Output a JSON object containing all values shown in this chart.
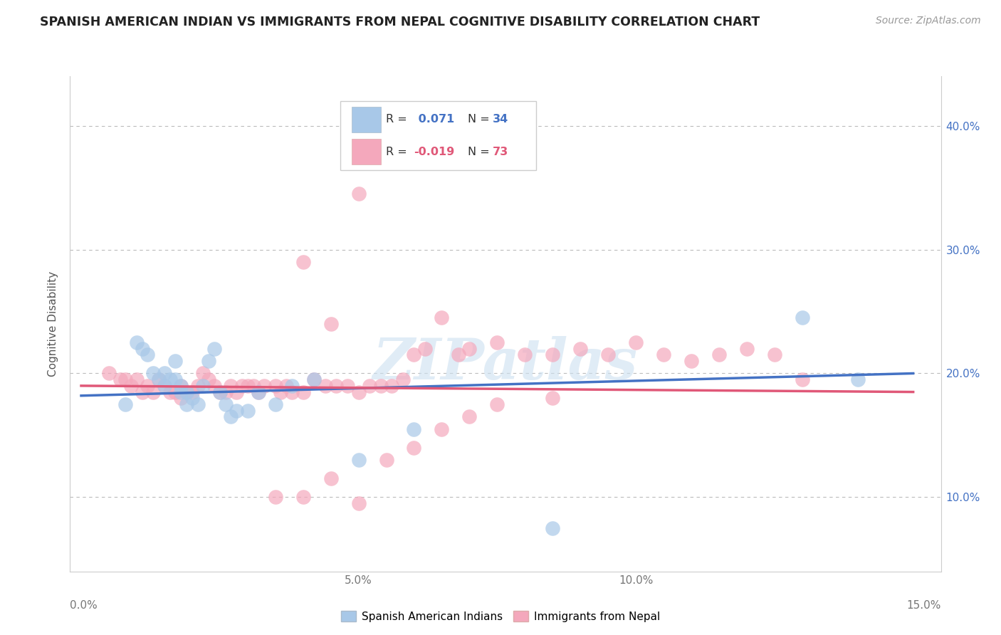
{
  "title": "SPANISH AMERICAN INDIAN VS IMMIGRANTS FROM NEPAL COGNITIVE DISABILITY CORRELATION CHART",
  "source": "Source: ZipAtlas.com",
  "ylabel": "Cognitive Disability",
  "xlim": [
    -0.002,
    0.155
  ],
  "ylim": [
    0.04,
    0.44
  ],
  "xticks": [
    0.0,
    0.05,
    0.1,
    0.15
  ],
  "xticklabels": [
    "0.0%",
    "5.0%",
    "10.0%",
    "15.0%"
  ],
  "yticks": [
    0.1,
    0.2,
    0.3,
    0.4
  ],
  "yticklabels": [
    "10.0%",
    "20.0%",
    "30.0%",
    "40.0%"
  ],
  "watermark": "ZIPatlas",
  "legend_r1": "R =  0.071",
  "legend_n1": "N = 34",
  "legend_r2": "R = -0.019",
  "legend_n2": "N = 73",
  "color_blue": "#a8c8e8",
  "color_pink": "#f4a8bc",
  "color_blue_line": "#4472c4",
  "color_pink_line": "#e05878",
  "color_blue_legend": "#4472c4",
  "color_pink_legend": "#e05878",
  "background_color": "#ffffff",
  "grid_color": "#bbbbbb",
  "blue_x": [
    0.008,
    0.01,
    0.011,
    0.012,
    0.013,
    0.014,
    0.015,
    0.015,
    0.016,
    0.017,
    0.017,
    0.018,
    0.018,
    0.019,
    0.019,
    0.02,
    0.021,
    0.022,
    0.023,
    0.024,
    0.025,
    0.026,
    0.027,
    0.028,
    0.03,
    0.032,
    0.035,
    0.038,
    0.042,
    0.05,
    0.06,
    0.085,
    0.13,
    0.14
  ],
  "blue_y": [
    0.175,
    0.225,
    0.22,
    0.215,
    0.2,
    0.195,
    0.2,
    0.19,
    0.195,
    0.195,
    0.21,
    0.19,
    0.185,
    0.185,
    0.175,
    0.18,
    0.175,
    0.19,
    0.21,
    0.22,
    0.185,
    0.175,
    0.165,
    0.17,
    0.17,
    0.185,
    0.175,
    0.19,
    0.195,
    0.13,
    0.155,
    0.075,
    0.245,
    0.195
  ],
  "pink_x": [
    0.005,
    0.007,
    0.008,
    0.009,
    0.01,
    0.011,
    0.012,
    0.013,
    0.014,
    0.015,
    0.016,
    0.017,
    0.018,
    0.018,
    0.019,
    0.02,
    0.021,
    0.022,
    0.023,
    0.024,
    0.025,
    0.026,
    0.027,
    0.028,
    0.029,
    0.03,
    0.031,
    0.032,
    0.033,
    0.035,
    0.036,
    0.037,
    0.038,
    0.04,
    0.042,
    0.044,
    0.046,
    0.048,
    0.05,
    0.052,
    0.054,
    0.056,
    0.058,
    0.06,
    0.062,
    0.065,
    0.068,
    0.07,
    0.075,
    0.08,
    0.085,
    0.09,
    0.095,
    0.1,
    0.105,
    0.11,
    0.115,
    0.12,
    0.125,
    0.13,
    0.035,
    0.04,
    0.045,
    0.05,
    0.055,
    0.06,
    0.065,
    0.07,
    0.04,
    0.045,
    0.05,
    0.075,
    0.085
  ],
  "pink_y": [
    0.2,
    0.195,
    0.195,
    0.19,
    0.195,
    0.185,
    0.19,
    0.185,
    0.195,
    0.19,
    0.185,
    0.185,
    0.19,
    0.18,
    0.185,
    0.185,
    0.19,
    0.2,
    0.195,
    0.19,
    0.185,
    0.185,
    0.19,
    0.185,
    0.19,
    0.19,
    0.19,
    0.185,
    0.19,
    0.19,
    0.185,
    0.19,
    0.185,
    0.185,
    0.195,
    0.19,
    0.19,
    0.19,
    0.185,
    0.19,
    0.19,
    0.19,
    0.195,
    0.215,
    0.22,
    0.245,
    0.215,
    0.22,
    0.225,
    0.215,
    0.215,
    0.22,
    0.215,
    0.225,
    0.215,
    0.21,
    0.215,
    0.22,
    0.215,
    0.195,
    0.1,
    0.1,
    0.115,
    0.095,
    0.13,
    0.14,
    0.155,
    0.165,
    0.29,
    0.24,
    0.345,
    0.175,
    0.18
  ]
}
